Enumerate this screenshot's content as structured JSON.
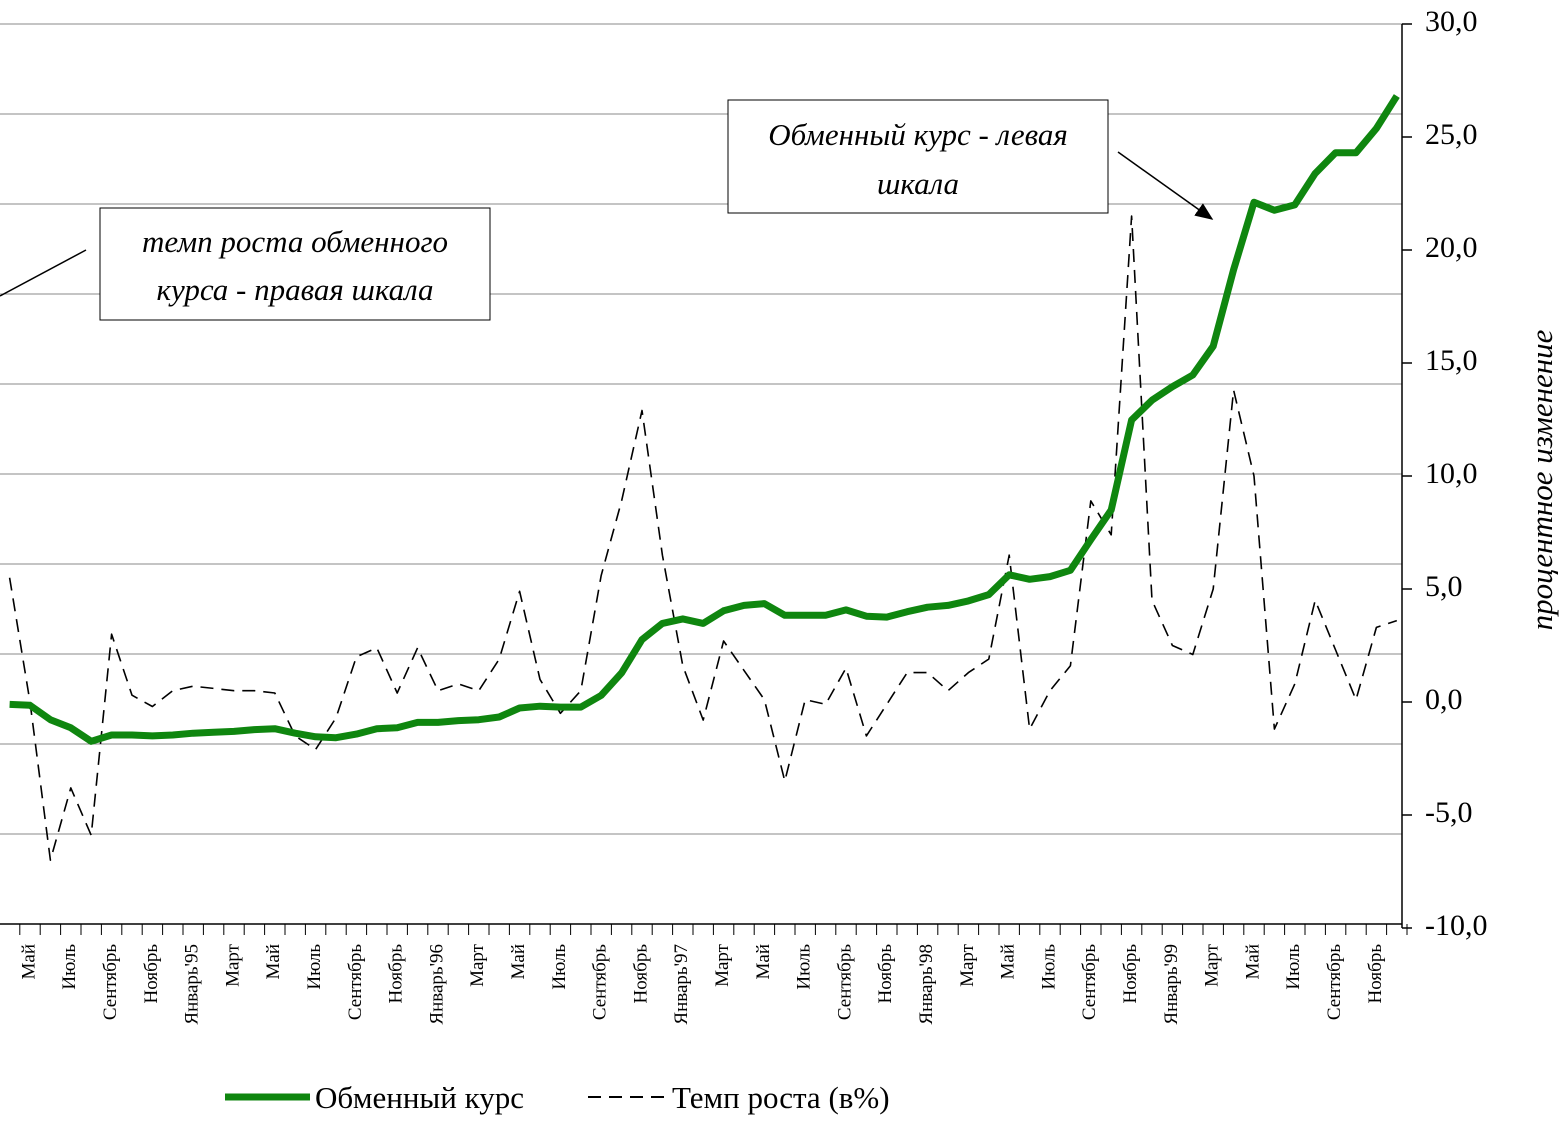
{
  "chart_data": {
    "type": "line",
    "categories": [
      null,
      "Май",
      null,
      "Июль",
      null,
      "Сентябрь",
      null,
      "Ноябрь",
      null,
      "Январь'95",
      null,
      "Март",
      null,
      "Май",
      null,
      "Июль",
      null,
      "Сентябрь",
      null,
      "Ноябрь",
      null,
      "Январь'96",
      null,
      "Март",
      null,
      "Май",
      null,
      "Июль",
      null,
      "Сентябрь",
      null,
      "Ноябрь",
      null,
      "Январь'97",
      null,
      "Март",
      null,
      "Май",
      null,
      "Июль",
      null,
      "Сентябрь",
      null,
      "Ноябрь",
      null,
      "Январь'98",
      null,
      "Март",
      null,
      "Май",
      null,
      "Июль",
      null,
      "Сентябрь",
      null,
      "Ноябрь",
      null,
      "Январь'99",
      null,
      "Март",
      null,
      "Май",
      null,
      "Июль",
      null,
      "Сентябрь",
      null,
      "Ноябрь",
      null
    ],
    "series": [
      {
        "name": "Обменный курс",
        "color": "#0f860f",
        "axis": "y",
        "dashed": false,
        "values": [
          2.44,
          2.43,
          2.27,
          2.18,
          2.03,
          2.1,
          2.1,
          2.09,
          2.1,
          2.12,
          2.13,
          2.14,
          2.16,
          2.17,
          2.12,
          2.08,
          2.07,
          2.11,
          2.17,
          2.18,
          2.24,
          2.24,
          2.26,
          2.27,
          2.3,
          2.4,
          2.42,
          2.41,
          2.41,
          2.54,
          2.79,
          3.16,
          3.34,
          3.39,
          3.34,
          3.48,
          3.54,
          3.56,
          3.43,
          3.43,
          3.43,
          3.49,
          3.42,
          3.41,
          3.47,
          3.52,
          3.54,
          3.59,
          3.66,
          3.88,
          3.83,
          3.86,
          3.93,
          4.27,
          4.6,
          5.6,
          5.82,
          5.97,
          6.1,
          6.42,
          7.27,
          8.02,
          7.93,
          7.99,
          8.34,
          8.57,
          8.57,
          8.84,
          9.2
        ]
      },
      {
        "name": "Темп роста (в%)",
        "color": "#000000",
        "axis": "y2",
        "dashed": true,
        "values": [
          5.5,
          0.0,
          -7.0,
          -3.8,
          -5.9,
          3.0,
          0.3,
          -0.2,
          0.5,
          0.7,
          0.6,
          0.5,
          0.5,
          0.4,
          -1.5,
          -2.1,
          -0.7,
          2.0,
          2.4,
          0.4,
          2.4,
          0.5,
          0.8,
          0.5,
          1.9,
          4.9,
          1.0,
          -0.5,
          0.5,
          5.6,
          8.9,
          12.9,
          6.5,
          1.6,
          -0.8,
          2.7,
          1.4,
          0.1,
          -3.5,
          0.1,
          -0.1,
          1.5,
          -1.5,
          -0.1,
          1.3,
          1.3,
          0.5,
          1.3,
          1.9,
          6.5,
          -1.2,
          0.5,
          1.6,
          8.9,
          7.4,
          21.5,
          4.5,
          2.5,
          2.1,
          5.0,
          13.8,
          10.0,
          -1.2,
          0.8,
          4.5,
          2.3,
          0.1,
          3.3,
          3.6
        ]
      }
    ],
    "ylim": [
      0,
      10
    ],
    "yticks": [
      0,
      1,
      2,
      3,
      4,
      5,
      6,
      7,
      8,
      9,
      10
    ],
    "grid": true,
    "y2lim": [
      -10,
      30
    ],
    "y2ticks": [
      {
        "value": -10,
        "label": "-10,0"
      },
      {
        "value": -5,
        "label": "-5,0"
      },
      {
        "value": 0,
        "label": "0,0"
      },
      {
        "value": 5,
        "label": "5,0"
      },
      {
        "value": 10,
        "label": "10,0"
      },
      {
        "value": 15,
        "label": "15,0"
      },
      {
        "value": 20,
        "label": "20,0"
      },
      {
        "value": 25,
        "label": "25,0"
      },
      {
        "value": 30,
        "label": "30,0"
      }
    ],
    "y2label": "процентное изменение",
    "annotations": [
      {
        "lines": [
          "темп роста обменного",
          "курса - правая шкала"
        ]
      },
      {
        "lines": [
          "Обменный курс - левая",
          "шкала"
        ]
      }
    ]
  }
}
